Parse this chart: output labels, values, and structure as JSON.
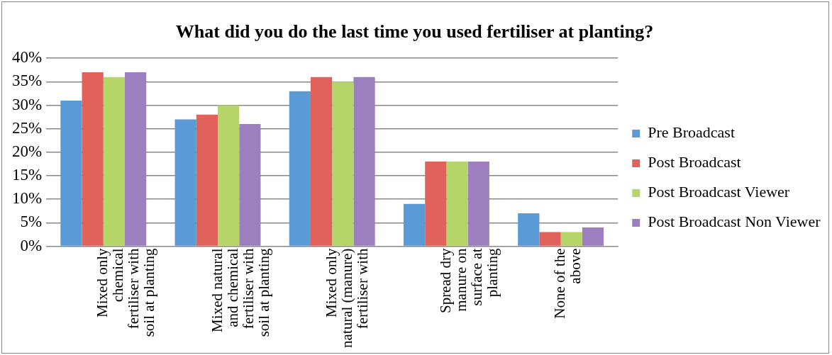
{
  "chart_data": {
    "type": "bar",
    "title": "What did you do the last time you used fertiliser at planting?",
    "categories": [
      "Mixed only chemical fertiliser with soil at planting",
      "Mixed natural and chemical fertiliser with soil at planting",
      "Mixed only natural (manure) fertiliser with",
      "Spread dry manure on surface at planting",
      "None of the above"
    ],
    "series": [
      {
        "name": "Pre Broadcast",
        "color": "#5b9bd5",
        "values": [
          31,
          27,
          33,
          9,
          7
        ]
      },
      {
        "name": "Post Broadcast",
        "color": "#e0625a",
        "values": [
          37,
          28,
          36,
          18,
          3
        ]
      },
      {
        "name": "Post Broadcast Viewer",
        "color": "#b5d56a",
        "values": [
          36,
          30,
          35,
          18,
          3
        ]
      },
      {
        "name": "Post Broadcast Non Viewer",
        "color": "#9d7fc0",
        "values": [
          37,
          26,
          36,
          18,
          4
        ]
      }
    ],
    "ylim": [
      0,
      40
    ],
    "yticks": [
      {
        "value": 0,
        "label": "0%"
      },
      {
        "value": 5,
        "label": "5%"
      },
      {
        "value": 10,
        "label": "10%"
      },
      {
        "value": 15,
        "label": "15%"
      },
      {
        "value": 20,
        "label": "20%"
      },
      {
        "value": 25,
        "label": "25%"
      },
      {
        "value": 30,
        "label": "30%"
      },
      {
        "value": 35,
        "label": "35%"
      },
      {
        "value": 40,
        "label": "40%"
      }
    ],
    "grid": "y",
    "legend": "right"
  }
}
